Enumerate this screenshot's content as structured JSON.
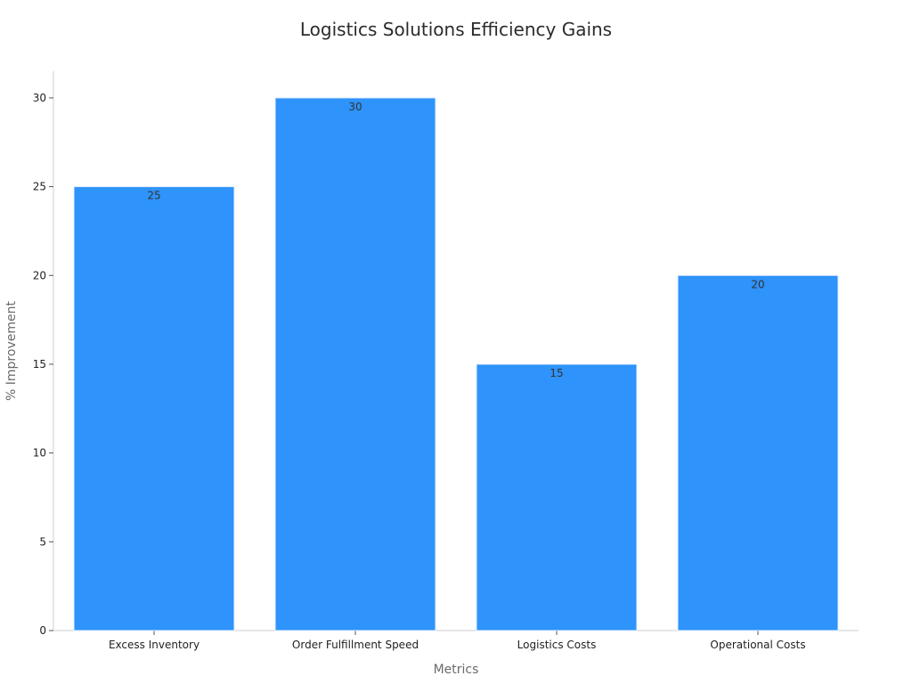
{
  "chart_data": {
    "type": "bar",
    "title": "Logistics Solutions Efficiency Gains",
    "xlabel": "Metrics",
    "ylabel": "% Improvement",
    "categories": [
      "Excess Inventory",
      "Order Fulfillment Speed",
      "Logistics Costs",
      "Operational Costs"
    ],
    "values": [
      25,
      30,
      15,
      20
    ],
    "ylim": [
      0,
      31.5
    ],
    "yticks": [
      0,
      5,
      10,
      15,
      20,
      25,
      30
    ],
    "bar_color": "#2E93FA",
    "grid": false,
    "legend": "none"
  }
}
